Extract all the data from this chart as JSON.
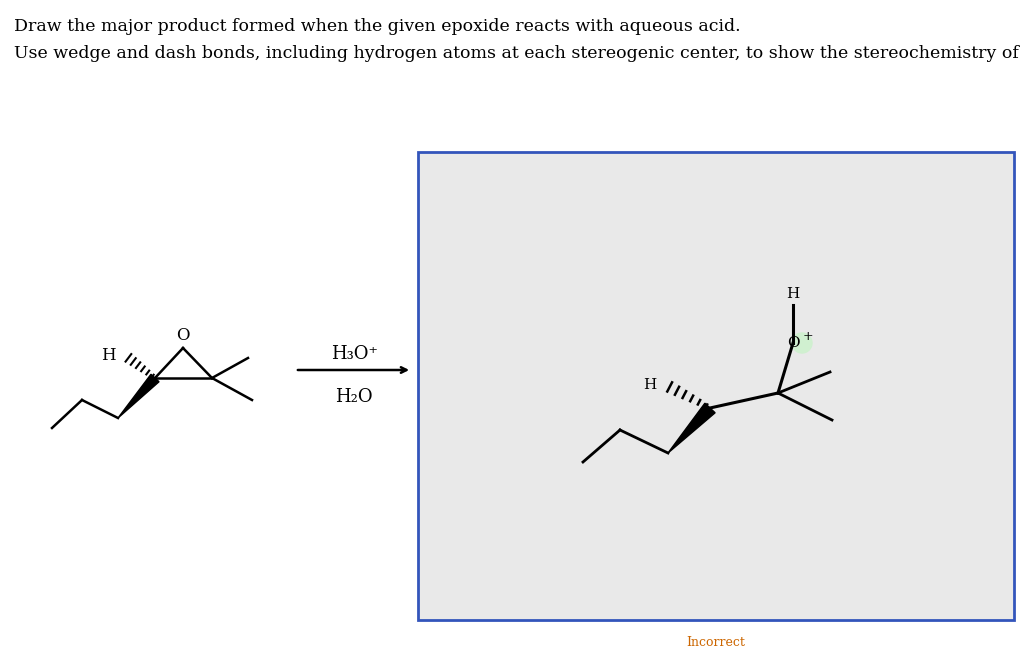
{
  "title_line1": "Draw the major product formed when the given epoxide reacts with aqueous acid.",
  "title_line2": "Use wedge and dash bonds, including hydrogen atoms at each stereogenic center, to show the stereochemistry of the product.",
  "reagent_top": "H₃O⁺",
  "reagent_bottom": "H₂O",
  "incorrect_label": "Incorrect",
  "bg_color": "#ffffff",
  "product_box_color": "#e9e9e9",
  "product_box_border": "#3355bb",
  "oh_highlight_color": "#d0f0d0"
}
